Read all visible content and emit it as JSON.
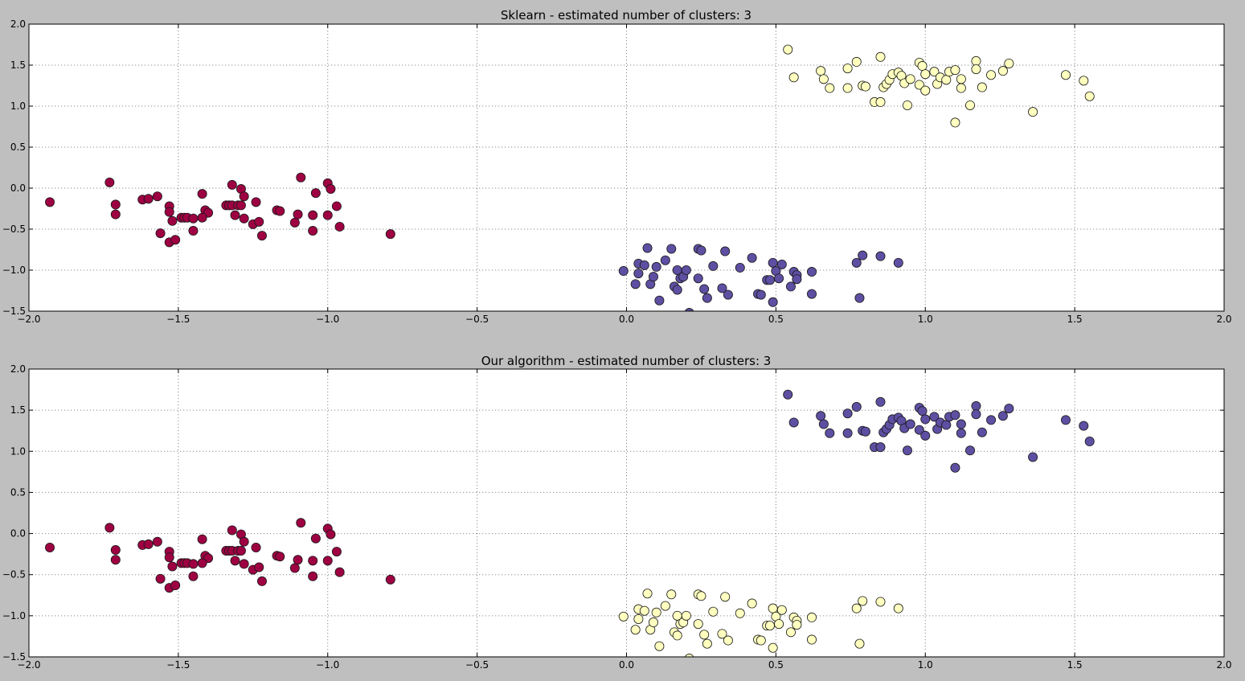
{
  "window": {
    "background": "#bfbfbf"
  },
  "chart_data": [
    {
      "type": "scatter",
      "title": "Sklearn - estimated number of clusters: 3",
      "xlabel": "",
      "ylabel": "",
      "xlim": [
        -2.0,
        2.0
      ],
      "ylim": [
        -1.5,
        2.0
      ],
      "xticks": [
        -2.0,
        -1.5,
        -1.0,
        -0.5,
        0.0,
        0.5,
        1.0,
        1.5,
        2.0
      ],
      "xtick_labels": [
        "−2.0",
        "−1.5",
        "−1.0",
        "−0.5",
        "0.0",
        "0.5",
        "1.0",
        "1.5",
        "2.0"
      ],
      "yticks": [
        -1.5,
        -1.0,
        -0.5,
        0.0,
        0.5,
        1.0,
        1.5,
        2.0
      ],
      "ytick_labels": [
        "−1.5",
        "−1.0",
        "−0.5",
        "0.0",
        "0.5",
        "1.0",
        "1.5",
        "2.0"
      ],
      "grid": true,
      "cluster_colors": {
        "A": "#9e0142",
        "B": "#5e4fa2",
        "C": "#ffffbf"
      }
    },
    {
      "type": "scatter",
      "title": "Our algorithm - estimated number of clusters: 3",
      "xlabel": "",
      "ylabel": "",
      "xlim": [
        -2.0,
        2.0
      ],
      "ylim": [
        -1.5,
        2.0
      ],
      "xticks": [
        -2.0,
        -1.5,
        -1.0,
        -0.5,
        0.0,
        0.5,
        1.0,
        1.5,
        2.0
      ],
      "xtick_labels": [
        "−2.0",
        "−1.5",
        "−1.0",
        "−0.5",
        "0.0",
        "0.5",
        "1.0",
        "1.5",
        "2.0"
      ],
      "yticks": [
        -1.5,
        -1.0,
        -0.5,
        0.0,
        0.5,
        1.0,
        1.5,
        2.0
      ],
      "ytick_labels": [
        "−1.5",
        "−1.0",
        "−0.5",
        "0.0",
        "0.5",
        "1.0",
        "1.5",
        "2.0"
      ],
      "grid": true,
      "cluster_colors": {
        "A": "#9e0142",
        "B": "#ffffbf",
        "C": "#5e4fa2"
      }
    }
  ],
  "clusters": {
    "A": [
      [
        -1.93,
        -0.17
      ],
      [
        -1.73,
        0.07
      ],
      [
        -1.71,
        -0.2
      ],
      [
        -1.71,
        -0.32
      ],
      [
        -1.62,
        -0.14
      ],
      [
        -1.6,
        -0.13
      ],
      [
        -1.57,
        -0.1
      ],
      [
        -1.56,
        -0.55
      ],
      [
        -1.53,
        -0.22
      ],
      [
        -1.53,
        -0.29
      ],
      [
        -1.52,
        -0.4
      ],
      [
        -1.53,
        -0.66
      ],
      [
        -1.51,
        -0.63
      ],
      [
        -1.49,
        -0.36
      ],
      [
        -1.48,
        -0.36
      ],
      [
        -1.47,
        -0.36
      ],
      [
        -1.45,
        -0.37
      ],
      [
        -1.45,
        -0.52
      ],
      [
        -1.42,
        -0.07
      ],
      [
        -1.41,
        -0.27
      ],
      [
        -1.4,
        -0.3
      ],
      [
        -1.42,
        -0.36
      ],
      [
        -1.34,
        -0.21
      ],
      [
        -1.33,
        -0.21
      ],
      [
        -1.32,
        0.04
      ],
      [
        -1.32,
        -0.21
      ],
      [
        -1.31,
        -0.33
      ],
      [
        -1.3,
        -0.21
      ],
      [
        -1.29,
        -0.01
      ],
      [
        -1.29,
        -0.21
      ],
      [
        -1.28,
        -0.1
      ],
      [
        -1.28,
        -0.37
      ],
      [
        -1.25,
        -0.44
      ],
      [
        -1.24,
        -0.17
      ],
      [
        -1.23,
        -0.41
      ],
      [
        -1.22,
        -0.58
      ],
      [
        -1.17,
        -0.27
      ],
      [
        -1.16,
        -0.28
      ],
      [
        -1.11,
        -0.42
      ],
      [
        -1.1,
        -0.32
      ],
      [
        -1.09,
        0.13
      ],
      [
        -1.05,
        -0.52
      ],
      [
        -1.05,
        -0.33
      ],
      [
        -1.04,
        -0.06
      ],
      [
        -1.0,
        0.06
      ],
      [
        -0.99,
        -0.01
      ],
      [
        -1.0,
        -0.33
      ],
      [
        -0.97,
        -0.22
      ],
      [
        -0.96,
        -0.47
      ],
      [
        -0.79,
        -0.56
      ]
    ],
    "B": [
      [
        -0.01,
        -1.01
      ],
      [
        0.03,
        -1.17
      ],
      [
        0.04,
        -0.92
      ],
      [
        0.04,
        -1.04
      ],
      [
        0.06,
        -0.94
      ],
      [
        0.07,
        -0.73
      ],
      [
        0.08,
        -1.17
      ],
      [
        0.09,
        -1.08
      ],
      [
        0.1,
        -0.96
      ],
      [
        0.11,
        -1.37
      ],
      [
        0.13,
        -0.88
      ],
      [
        0.15,
        -0.74
      ],
      [
        0.16,
        -1.2
      ],
      [
        0.17,
        -1.0
      ],
      [
        0.17,
        -1.24
      ],
      [
        0.18,
        -1.1
      ],
      [
        0.19,
        -1.08
      ],
      [
        0.2,
        -1.0
      ],
      [
        0.21,
        -1.52
      ],
      [
        0.24,
        -0.74
      ],
      [
        0.25,
        -0.76
      ],
      [
        0.24,
        -1.1
      ],
      [
        0.26,
        -1.23
      ],
      [
        0.27,
        -1.34
      ],
      [
        0.29,
        -0.95
      ],
      [
        0.32,
        -1.22
      ],
      [
        0.33,
        -0.77
      ],
      [
        0.34,
        -1.3
      ],
      [
        0.38,
        -0.97
      ],
      [
        0.42,
        -0.85
      ],
      [
        0.44,
        -1.29
      ],
      [
        0.45,
        -1.3
      ],
      [
        0.47,
        -1.12
      ],
      [
        0.48,
        -1.12
      ],
      [
        0.49,
        -0.91
      ],
      [
        0.5,
        -1.01
      ],
      [
        0.51,
        -1.1
      ],
      [
        0.49,
        -1.39
      ],
      [
        0.52,
        -0.93
      ],
      [
        0.55,
        -1.2
      ],
      [
        0.56,
        -1.02
      ],
      [
        0.57,
        -1.06
      ],
      [
        0.57,
        -1.11
      ],
      [
        0.62,
        -1.02
      ],
      [
        0.62,
        -1.29
      ],
      [
        0.77,
        -0.91
      ],
      [
        0.78,
        -1.34
      ],
      [
        0.79,
        -0.82
      ],
      [
        0.85,
        -0.83
      ],
      [
        0.91,
        -0.91
      ]
    ],
    "C": [
      [
        0.54,
        1.69
      ],
      [
        0.56,
        1.35
      ],
      [
        0.65,
        1.43
      ],
      [
        0.66,
        1.33
      ],
      [
        0.68,
        1.22
      ],
      [
        0.74,
        1.22
      ],
      [
        0.74,
        1.46
      ],
      [
        0.77,
        1.54
      ],
      [
        0.79,
        1.25
      ],
      [
        0.8,
        1.24
      ],
      [
        0.83,
        1.05
      ],
      [
        0.85,
        1.05
      ],
      [
        0.85,
        1.6
      ],
      [
        0.86,
        1.23
      ],
      [
        0.87,
        1.27
      ],
      [
        0.88,
        1.32
      ],
      [
        0.89,
        1.39
      ],
      [
        0.91,
        1.41
      ],
      [
        0.92,
        1.37
      ],
      [
        0.93,
        1.28
      ],
      [
        0.94,
        1.01
      ],
      [
        0.95,
        1.33
      ],
      [
        0.98,
        1.26
      ],
      [
        0.98,
        1.53
      ],
      [
        0.99,
        1.49
      ],
      [
        1.0,
        1.19
      ],
      [
        1.0,
        1.39
      ],
      [
        1.03,
        1.42
      ],
      [
        1.04,
        1.27
      ],
      [
        1.05,
        1.35
      ],
      [
        1.07,
        1.32
      ],
      [
        1.08,
        1.42
      ],
      [
        1.1,
        1.44
      ],
      [
        1.1,
        0.8
      ],
      [
        1.12,
        1.33
      ],
      [
        1.12,
        1.22
      ],
      [
        1.15,
        1.01
      ],
      [
        1.17,
        1.55
      ],
      [
        1.17,
        1.45
      ],
      [
        1.19,
        1.23
      ],
      [
        1.22,
        1.38
      ],
      [
        1.26,
        1.43
      ],
      [
        1.28,
        1.52
      ],
      [
        1.36,
        0.93
      ],
      [
        1.47,
        1.38
      ],
      [
        1.53,
        1.31
      ],
      [
        1.55,
        1.12
      ]
    ]
  }
}
